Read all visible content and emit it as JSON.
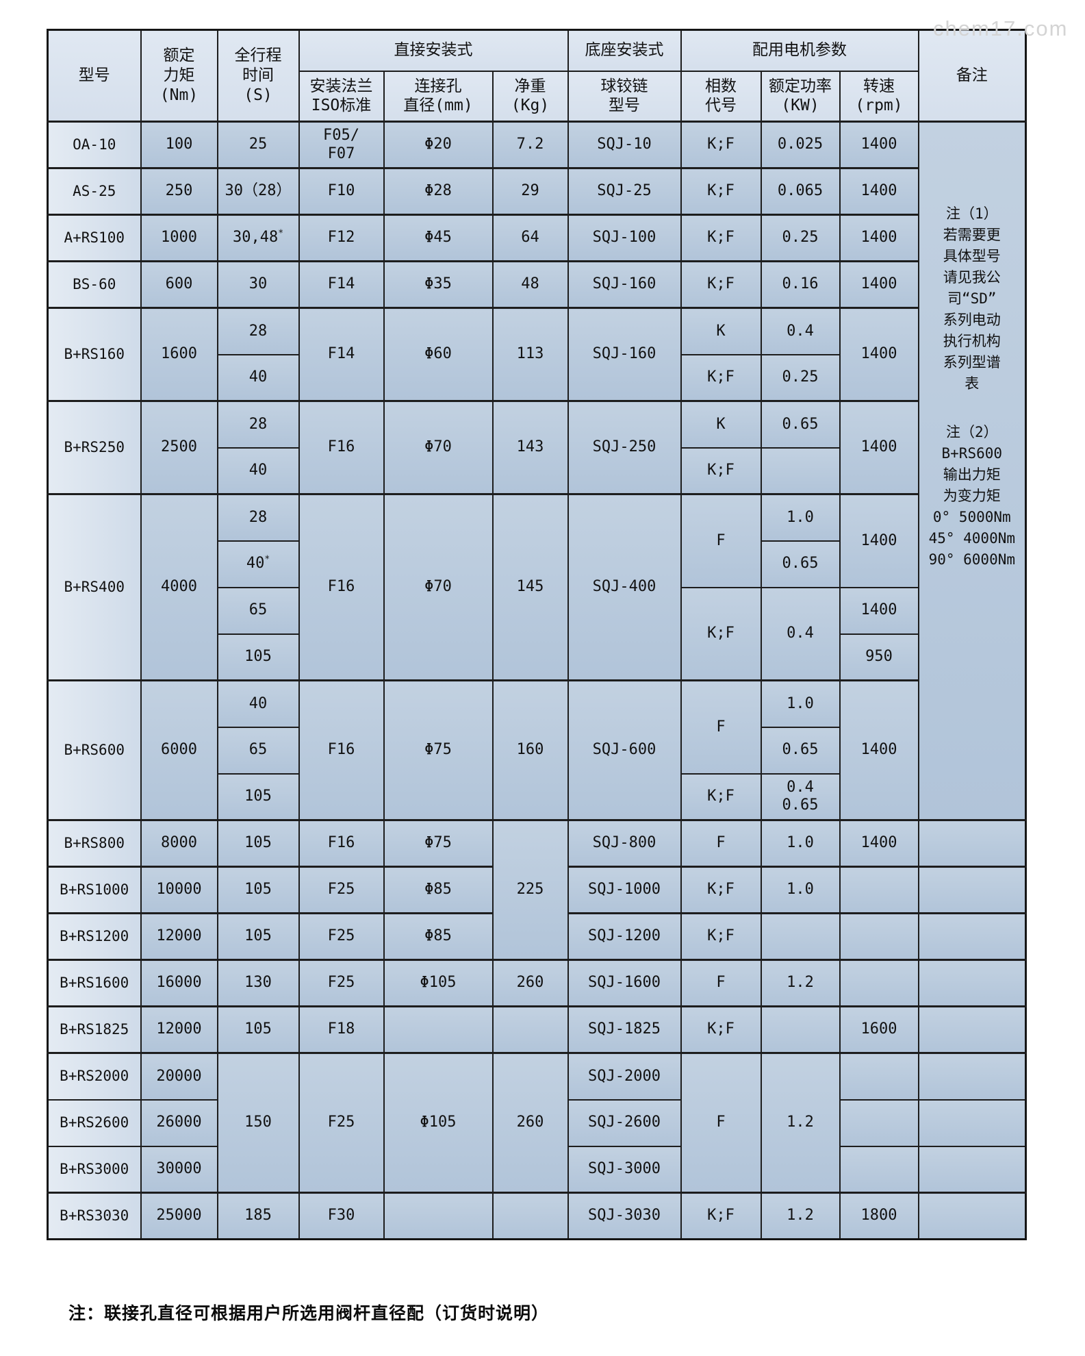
{
  "watermark": "chem17.com",
  "footer_note": "注：联接孔直径可根据用户所选用阀杆直径配（订货时说明）",
  "header": {
    "row1": [
      {
        "t": "型号",
        "rs": 2
      },
      {
        "t": "额定\n力矩\n(Nm)",
        "rs": 2
      },
      {
        "t": "全行程\n时间\n(S)",
        "rs": 2
      },
      {
        "t": "直接安装式",
        "cs": 3
      },
      {
        "t": "底座安装式"
      },
      {
        "t": "配用电机参数",
        "cs": 3
      },
      {
        "t": "备注",
        "rs": 2
      }
    ],
    "row2": [
      {
        "t": "安装法兰\nISO标准"
      },
      {
        "t": "连接孔\n直径(mm)"
      },
      {
        "t": "净重\n(Kg)"
      },
      {
        "t": "球铰链\n型号"
      },
      {
        "t": "相数\n代号"
      },
      {
        "t": "额定功率\n(KW)"
      },
      {
        "t": "转速\n(rpm)"
      }
    ]
  },
  "notes": {
    "note1": [
      "注（1）",
      "若需要更",
      "具体型号",
      "请见我公",
      "司“SD”",
      "系列电动",
      "执行机构",
      "系列型谱",
      "表"
    ],
    "note2": [
      "注（2）",
      "B+RS600",
      "输出力矩",
      "为变力矩",
      "0° 5000Nm",
      "45° 4000Nm",
      "90° 6000Nm"
    ]
  },
  "rows": [
    {
      "c": [
        {
          "t": "OA-10",
          "m": 1
        },
        {
          "t": "100"
        },
        {
          "t": "25"
        },
        {
          "t": "F05/\nF07"
        },
        {
          "t": "Φ20"
        },
        {
          "t": "7.2"
        },
        {
          "t": "SQJ-10"
        },
        {
          "t": "K;F"
        },
        {
          "t": "0.025"
        },
        {
          "t": "1400"
        },
        {
          "note": 1,
          "rs": 15
        }
      ]
    },
    {
      "g": 1,
      "c": [
        {
          "t": "AS-25",
          "m": 1
        },
        {
          "t": "250"
        },
        {
          "t": "30（28）"
        },
        {
          "t": "F10"
        },
        {
          "t": "Φ28"
        },
        {
          "t": "29"
        },
        {
          "t": "SQJ-25"
        },
        {
          "t": "K;F"
        },
        {
          "t": "0.065"
        },
        {
          "t": "1400"
        }
      ]
    },
    {
      "g": 1,
      "c": [
        {
          "t": "A+RS100",
          "m": 1
        },
        {
          "t": "1000"
        },
        {
          "t": "30,48",
          "sup": "*"
        },
        {
          "t": "F12"
        },
        {
          "t": "Φ45"
        },
        {
          "t": "64"
        },
        {
          "t": "SQJ-100"
        },
        {
          "t": "K;F"
        },
        {
          "t": "0.25"
        },
        {
          "t": "1400"
        }
      ]
    },
    {
      "g": 1,
      "c": [
        {
          "t": "BS-60",
          "m": 1
        },
        {
          "t": "600"
        },
        {
          "t": "30"
        },
        {
          "t": "F14"
        },
        {
          "t": "Φ35"
        },
        {
          "t": "48"
        },
        {
          "t": "SQJ-160"
        },
        {
          "t": "K;F"
        },
        {
          "t": "0.16"
        },
        {
          "t": "1400"
        }
      ]
    },
    {
      "g": 1,
      "c": [
        {
          "t": "B+RS160",
          "m": 1,
          "rs": 2
        },
        {
          "t": "1600",
          "rs": 2
        },
        {
          "t": "28"
        },
        {
          "t": "F14",
          "rs": 2
        },
        {
          "t": "Φ60",
          "rs": 2
        },
        {
          "t": "113",
          "rs": 2
        },
        {
          "t": "SQJ-160",
          "rs": 2
        },
        {
          "t": "K"
        },
        {
          "t": "0.4"
        },
        {
          "t": "1400",
          "rs": 2
        }
      ]
    },
    {
      "c": [
        {
          "t": "40"
        },
        {
          "t": "K;F"
        },
        {
          "t": "0.25"
        }
      ]
    },
    {
      "g": 1,
      "c": [
        {
          "t": "B+RS250",
          "m": 1,
          "rs": 2
        },
        {
          "t": "2500",
          "rs": 2
        },
        {
          "t": "28"
        },
        {
          "t": "F16",
          "rs": 2
        },
        {
          "t": "Φ70",
          "rs": 2
        },
        {
          "t": "143",
          "rs": 2
        },
        {
          "t": "SQJ-250",
          "rs": 2
        },
        {
          "t": "K"
        },
        {
          "t": "0.65"
        },
        {
          "t": "1400",
          "rs": 2
        }
      ]
    },
    {
      "c": [
        {
          "t": "40"
        },
        {
          "t": "K;F"
        },
        {
          "t": ""
        }
      ]
    },
    {
      "g": 1,
      "c": [
        {
          "t": "B+RS400",
          "m": 1,
          "rs": 4
        },
        {
          "t": "4000",
          "rs": 4
        },
        {
          "t": "28"
        },
        {
          "t": "F16",
          "rs": 4
        },
        {
          "t": "Φ70",
          "rs": 4
        },
        {
          "t": "145",
          "rs": 4
        },
        {
          "t": "SQJ-400",
          "rs": 4
        },
        {
          "t": "F",
          "rs": 2
        },
        {
          "t": "1.0"
        },
        {
          "t": "1400",
          "rs": 2
        }
      ]
    },
    {
      "c": [
        {
          "t": "40",
          "sup": "*"
        },
        {
          "t": "0.65"
        }
      ]
    },
    {
      "c": [
        {
          "t": "65"
        },
        {
          "t": "K;F",
          "rs": 2
        },
        {
          "t": "0.4",
          "rs": 2
        },
        {
          "t": "1400"
        }
      ]
    },
    {
      "c": [
        {
          "t": "105"
        },
        {
          "t": "950"
        }
      ]
    },
    {
      "g": 1,
      "c": [
        {
          "t": "B+RS600",
          "m": 1,
          "rs": 3
        },
        {
          "t": "6000",
          "rs": 3
        },
        {
          "t": "40"
        },
        {
          "t": "F16",
          "rs": 3
        },
        {
          "t": "Φ75",
          "rs": 3
        },
        {
          "t": "160",
          "rs": 3
        },
        {
          "t": "SQJ-600",
          "rs": 3
        },
        {
          "t": "F",
          "rs": 2
        },
        {
          "t": "1.0"
        },
        {
          "t": "1400",
          "rs": 3
        }
      ]
    },
    {
      "c": [
        {
          "t": "65"
        },
        {
          "t": "0.65"
        }
      ]
    },
    {
      "c": [
        {
          "t": "105"
        },
        {
          "t": "K;F"
        },
        {
          "t": "0.4\n0.65"
        }
      ]
    },
    {
      "g": 1,
      "c": [
        {
          "t": "B+RS800",
          "m": 1
        },
        {
          "t": "8000"
        },
        {
          "t": "105"
        },
        {
          "t": "F16"
        },
        {
          "t": "Φ75"
        },
        {
          "t": "225",
          "rs": 3
        },
        {
          "t": "SQJ-800"
        },
        {
          "t": "F"
        },
        {
          "t": "1.0"
        },
        {
          "t": "1400"
        },
        {
          "t": ""
        }
      ]
    },
    {
      "g": 1,
      "c": [
        {
          "t": "B+RS1000",
          "m": 1
        },
        {
          "t": "10000"
        },
        {
          "t": "105"
        },
        {
          "t": "F25"
        },
        {
          "t": "Φ85"
        },
        {
          "t": "SQJ-1000"
        },
        {
          "t": "K;F"
        },
        {
          "t": "1.0"
        },
        {
          "t": ""
        },
        {
          "t": ""
        }
      ]
    },
    {
      "g": 1,
      "c": [
        {
          "t": "B+RS1200",
          "m": 1
        },
        {
          "t": "12000"
        },
        {
          "t": "105"
        },
        {
          "t": "F25"
        },
        {
          "t": "Φ85"
        },
        {
          "t": "SQJ-1200"
        },
        {
          "t": "K;F"
        },
        {
          "t": ""
        },
        {
          "t": ""
        },
        {
          "t": ""
        }
      ]
    },
    {
      "g": 1,
      "c": [
        {
          "t": "B+RS1600",
          "m": 1
        },
        {
          "t": "16000"
        },
        {
          "t": "130"
        },
        {
          "t": "F25"
        },
        {
          "t": "Φ105"
        },
        {
          "t": "260"
        },
        {
          "t": "SQJ-1600"
        },
        {
          "t": "F"
        },
        {
          "t": "1.2"
        },
        {
          "t": ""
        },
        {
          "t": ""
        }
      ]
    },
    {
      "g": 1,
      "c": [
        {
          "t": "B+RS1825",
          "m": 1
        },
        {
          "t": "12000"
        },
        {
          "t": "105"
        },
        {
          "t": "F18"
        },
        {
          "t": ""
        },
        {
          "t": ""
        },
        {
          "t": "SQJ-1825"
        },
        {
          "t": "K;F"
        },
        {
          "t": ""
        },
        {
          "t": "1600"
        },
        {
          "t": ""
        }
      ]
    },
    {
      "g": 1,
      "c": [
        {
          "t": "B+RS2000",
          "m": 1
        },
        {
          "t": "20000"
        },
        {
          "t": "150",
          "rs": 3
        },
        {
          "t": "F25",
          "rs": 3
        },
        {
          "t": "Φ105",
          "rs": 3
        },
        {
          "t": "260",
          "rs": 3
        },
        {
          "t": "SQJ-2000"
        },
        {
          "t": "F",
          "rs": 3
        },
        {
          "t": "1.2",
          "rs": 3
        },
        {
          "t": ""
        },
        {
          "t": ""
        }
      ]
    },
    {
      "c": [
        {
          "t": "B+RS2600",
          "m": 1
        },
        {
          "t": "26000"
        },
        {
          "t": "SQJ-2600"
        },
        {
          "t": ""
        },
        {
          "t": ""
        }
      ]
    },
    {
      "c": [
        {
          "t": "B+RS3000",
          "m": 1
        },
        {
          "t": "30000"
        },
        {
          "t": "SQJ-3000"
        },
        {
          "t": ""
        },
        {
          "t": ""
        }
      ]
    },
    {
      "g": 1,
      "c": [
        {
          "t": "B+RS3030",
          "m": 1
        },
        {
          "t": "25000"
        },
        {
          "t": "185"
        },
        {
          "t": "F30"
        },
        {
          "t": ""
        },
        {
          "t": ""
        },
        {
          "t": "SQJ-3030"
        },
        {
          "t": "K;F"
        },
        {
          "t": "1.2"
        },
        {
          "t": "1800"
        },
        {
          "t": ""
        }
      ]
    }
  ]
}
